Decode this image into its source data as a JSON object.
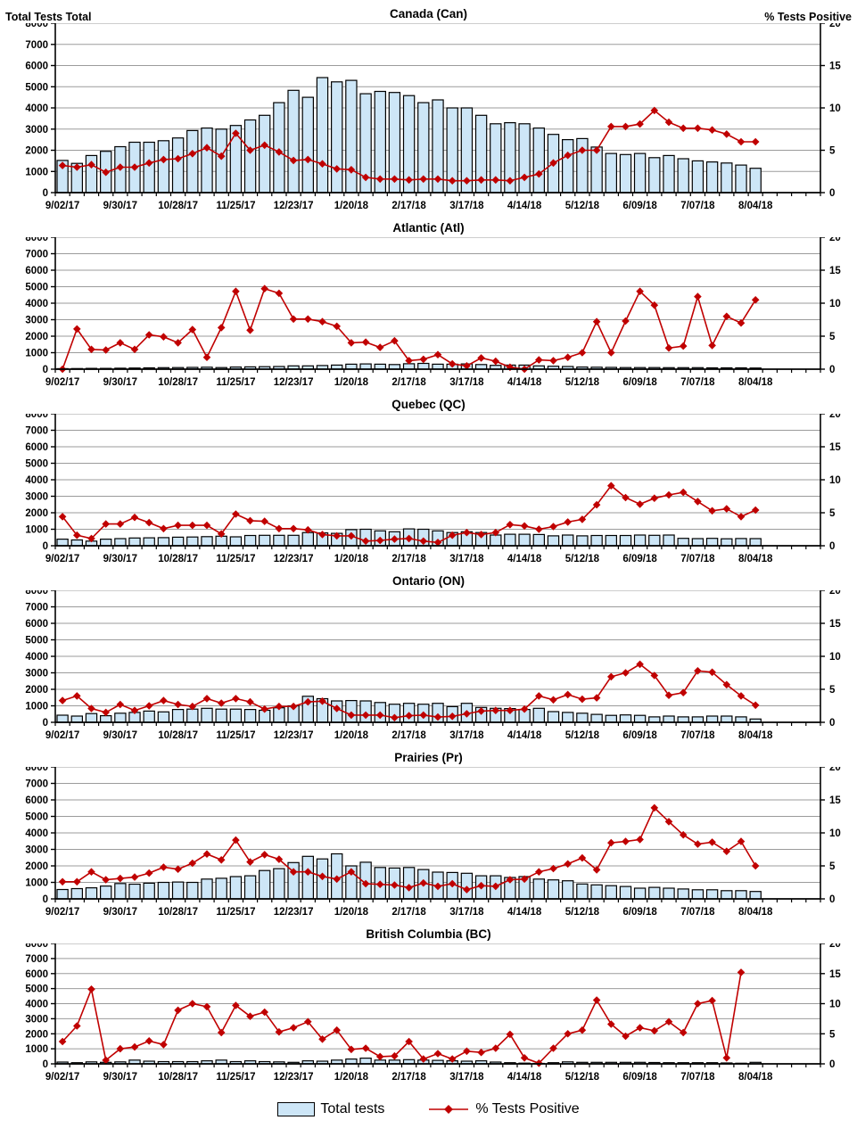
{
  "header": {
    "left_axis_title": "Total Tests Total",
    "right_axis_title": "% Tests Positive"
  },
  "legend": {
    "bars_label": "Total tests",
    "line_label": "% Tests Positive"
  },
  "colors": {
    "bar_fill": "#CDE6F7",
    "bar_stroke": "#000000",
    "line": "#C00000",
    "grid": "#9B9B9B",
    "axis": "#000000",
    "text": "#000000"
  },
  "axes": {
    "left_max": 8000,
    "right_max": 20,
    "left_ticks": [
      0,
      1000,
      2000,
      3000,
      4000,
      5000,
      6000,
      7000,
      8000
    ],
    "right_ticks": [
      0,
      5,
      10,
      15,
      20
    ],
    "x_labels": [
      "9/02/17",
      "9/30/17",
      "10/28/17",
      "11/25/17",
      "12/23/17",
      "1/20/18",
      "2/17/18",
      "3/17/18",
      "4/14/18",
      "5/12/18",
      "6/09/18",
      "7/07/18",
      "8/04/18"
    ],
    "x_label_every": 4,
    "data_slots": 49,
    "total_slots": 53,
    "grid_step_left": 1000
  },
  "chart_data": [
    {
      "type": "combo-bar-line",
      "region": "Canada",
      "title": "Canada (Can)",
      "categories": [
        "9/02/17",
        "9/09/17",
        "9/16/17",
        "9/23/17",
        "9/30/17",
        "10/07/17",
        "10/14/17",
        "10/21/17",
        "10/28/17",
        "11/04/17",
        "11/11/17",
        "11/18/17",
        "11/25/17",
        "12/02/17",
        "12/09/17",
        "12/16/17",
        "12/23/17",
        "12/30/17",
        "1/06/18",
        "1/13/18",
        "1/20/18",
        "1/27/18",
        "2/03/18",
        "2/10/18",
        "2/17/18",
        "2/24/18",
        "3/03/18",
        "3/10/18",
        "3/17/18",
        "3/24/18",
        "3/31/18",
        "4/07/18",
        "4/14/18",
        "4/21/18",
        "4/28/18",
        "5/05/18",
        "5/12/18",
        "5/19/18",
        "5/26/18",
        "6/02/18",
        "6/09/18",
        "6/16/18",
        "6/23/18",
        "6/30/18",
        "7/07/18",
        "7/14/18",
        "7/21/18",
        "7/28/18",
        "8/04/18"
      ],
      "series": [
        {
          "name": "Total tests",
          "axis": "left",
          "values": [
            1520,
            1380,
            1750,
            1950,
            2170,
            2380,
            2380,
            2450,
            2580,
            2930,
            3050,
            3000,
            3170,
            3430,
            3650,
            4250,
            4830,
            4500,
            5430,
            5230,
            5300,
            4670,
            4780,
            4730,
            4580,
            4250,
            4380,
            4000,
            4000,
            3650,
            3250,
            3300,
            3250,
            3050,
            2750,
            2500,
            2550,
            2150,
            1850,
            1800,
            1850,
            1650,
            1750,
            1600,
            1500,
            1450,
            1400,
            1300,
            1150
          ]
        },
        {
          "name": "% Tests Positive",
          "axis": "right",
          "values": [
            3.2,
            3.0,
            3.3,
            2.4,
            3.0,
            3.0,
            3.5,
            3.9,
            4.0,
            4.6,
            5.3,
            4.3,
            7.0,
            5.0,
            5.6,
            4.8,
            3.8,
            3.9,
            3.4,
            2.8,
            2.7,
            1.8,
            1.6,
            1.6,
            1.5,
            1.6,
            1.6,
            1.4,
            1.4,
            1.5,
            1.5,
            1.4,
            1.8,
            2.2,
            3.5,
            4.4,
            5.0,
            5.0,
            7.8,
            7.8,
            8.1,
            9.7,
            8.3,
            7.6,
            7.6,
            7.4,
            6.9,
            6.0,
            6.0
          ]
        }
      ]
    },
    {
      "type": "combo-bar-line",
      "region": "Atlantic",
      "title": "Atlantic (Atl)",
      "categories": [
        "9/02/17",
        "9/09/17",
        "9/16/17",
        "9/23/17",
        "9/30/17",
        "10/07/17",
        "10/14/17",
        "10/21/17",
        "10/28/17",
        "11/04/17",
        "11/11/17",
        "11/18/17",
        "11/25/17",
        "12/02/17",
        "12/09/17",
        "12/16/17",
        "12/23/17",
        "12/30/17",
        "1/06/18",
        "1/13/18",
        "1/20/18",
        "1/27/18",
        "2/03/18",
        "2/10/18",
        "2/17/18",
        "2/24/18",
        "3/03/18",
        "3/10/18",
        "3/17/18",
        "3/24/18",
        "3/31/18",
        "4/07/18",
        "4/14/18",
        "4/21/18",
        "4/28/18",
        "5/05/18",
        "5/12/18",
        "5/19/18",
        "5/26/18",
        "6/02/18",
        "6/09/18",
        "6/16/18",
        "6/23/18",
        "6/30/18",
        "7/07/18",
        "7/14/18",
        "7/21/18",
        "7/28/18",
        "8/04/18"
      ],
      "series": [
        {
          "name": "Total tests",
          "axis": "left",
          "values": [
            30,
            40,
            50,
            50,
            60,
            70,
            80,
            90,
            100,
            110,
            120,
            100,
            130,
            140,
            150,
            160,
            200,
            200,
            220,
            250,
            300,
            320,
            300,
            280,
            330,
            350,
            300,
            300,
            320,
            280,
            230,
            250,
            250,
            200,
            180,
            160,
            130,
            120,
            110,
            100,
            100,
            100,
            90,
            90,
            90,
            80,
            80,
            80,
            70
          ]
        },
        {
          "name": "% Tests Positive",
          "axis": "right",
          "values": [
            0,
            6.1,
            3.0,
            2.9,
            4.0,
            3.0,
            5.2,
            4.9,
            4.0,
            6.0,
            1.8,
            6.3,
            11.8,
            5.9,
            12.2,
            11.5,
            7.6,
            7.6,
            7.2,
            6.5,
            4.0,
            4.1,
            3.3,
            4.3,
            1.3,
            1.5,
            2.2,
            0.8,
            0.5,
            1.7,
            1.2,
            0.3,
            0,
            1.4,
            1.3,
            1.8,
            2.5,
            7.2,
            2.5,
            7.3,
            11.8,
            9.7,
            3.2,
            3.5,
            11.0,
            3.6,
            8.0,
            7.0,
            10.5
          ]
        }
      ]
    },
    {
      "type": "combo-bar-line",
      "region": "Quebec",
      "title": "Quebec (QC)",
      "categories": [
        "9/02/17",
        "9/09/17",
        "9/16/17",
        "9/23/17",
        "9/30/17",
        "10/07/17",
        "10/14/17",
        "10/21/17",
        "10/28/17",
        "11/04/17",
        "11/11/17",
        "11/18/17",
        "11/25/17",
        "12/02/17",
        "12/09/17",
        "12/16/17",
        "12/23/17",
        "12/30/17",
        "1/06/18",
        "1/13/18",
        "1/20/18",
        "1/27/18",
        "2/03/18",
        "2/10/18",
        "2/17/18",
        "2/24/18",
        "3/03/18",
        "3/10/18",
        "3/17/18",
        "3/24/18",
        "3/31/18",
        "4/07/18",
        "4/14/18",
        "4/21/18",
        "4/28/18",
        "5/05/18",
        "5/12/18",
        "5/19/18",
        "5/26/18",
        "6/02/18",
        "6/09/18",
        "6/16/18",
        "6/23/18",
        "6/30/18",
        "7/07/18",
        "7/14/18",
        "7/21/18",
        "7/28/18",
        "8/04/18"
      ],
      "series": [
        {
          "name": "Total tests",
          "axis": "left",
          "values": [
            400,
            350,
            280,
            400,
            430,
            470,
            480,
            490,
            520,
            530,
            550,
            580,
            540,
            620,
            630,
            630,
            630,
            800,
            780,
            750,
            980,
            1000,
            900,
            850,
            1020,
            1000,
            900,
            800,
            850,
            800,
            650,
            700,
            700,
            680,
            600,
            650,
            600,
            620,
            620,
            620,
            650,
            630,
            650,
            450,
            430,
            450,
            420,
            440,
            430
          ]
        },
        {
          "name": "% Tests Positive",
          "axis": "right",
          "values": [
            4.4,
            1.6,
            1.1,
            3.3,
            3.3,
            4.3,
            3.5,
            2.6,
            3.1,
            3.1,
            3.1,
            1.8,
            4.8,
            3.8,
            3.7,
            2.6,
            2.6,
            2.4,
            1.7,
            1.5,
            1.5,
            0.7,
            0.8,
            1.0,
            1.1,
            0.7,
            0.5,
            1.6,
            2.0,
            1.7,
            2.0,
            3.2,
            3.0,
            2.5,
            2.9,
            3.6,
            4.0,
            6.2,
            9.1,
            7.3,
            6.3,
            7.2,
            7.7,
            8.1,
            6.7,
            5.3,
            5.6,
            4.4,
            5.4
          ]
        }
      ]
    },
    {
      "type": "combo-bar-line",
      "region": "Ontario",
      "title": "Ontario (ON)",
      "categories": [
        "9/02/17",
        "9/09/17",
        "9/16/17",
        "9/23/17",
        "9/30/17",
        "10/07/17",
        "10/14/17",
        "10/21/17",
        "10/28/17",
        "11/04/17",
        "11/11/17",
        "11/18/17",
        "11/25/17",
        "12/02/17",
        "12/09/17",
        "12/16/17",
        "12/23/17",
        "12/30/17",
        "1/06/18",
        "1/13/18",
        "1/20/18",
        "1/27/18",
        "2/03/18",
        "2/10/18",
        "2/17/18",
        "2/24/18",
        "3/03/18",
        "3/10/18",
        "3/17/18",
        "3/24/18",
        "3/31/18",
        "4/07/18",
        "4/14/18",
        "4/21/18",
        "4/28/18",
        "5/05/18",
        "5/12/18",
        "5/19/18",
        "5/26/18",
        "6/02/18",
        "6/09/18",
        "6/16/18",
        "6/23/18",
        "6/30/18",
        "7/07/18",
        "7/14/18",
        "7/21/18",
        "7/28/18",
        "8/04/18"
      ],
      "series": [
        {
          "name": "Total tests",
          "axis": "left",
          "values": [
            430,
            380,
            530,
            400,
            550,
            600,
            680,
            630,
            780,
            800,
            850,
            800,
            800,
            780,
            730,
            880,
            1000,
            1580,
            1430,
            1300,
            1320,
            1300,
            1200,
            1100,
            1150,
            1100,
            1150,
            950,
            1150,
            900,
            850,
            830,
            780,
            850,
            650,
            600,
            550,
            480,
            420,
            450,
            420,
            330,
            380,
            330,
            330,
            380,
            380,
            330,
            200
          ]
        },
        {
          "name": "% Tests Positive",
          "axis": "right",
          "values": [
            3.3,
            4.0,
            2.1,
            1.5,
            2.7,
            1.8,
            2.5,
            3.3,
            2.7,
            2.4,
            3.6,
            2.9,
            3.6,
            3.1,
            2.0,
            2.4,
            2.4,
            3.1,
            3.2,
            2.1,
            1.1,
            1.1,
            1.1,
            0.7,
            1.0,
            1.1,
            0.8,
            0.9,
            1.3,
            1.7,
            1.8,
            1.8,
            2.0,
            4.0,
            3.4,
            4.2,
            3.5,
            3.7,
            6.9,
            7.5,
            8.8,
            7.1,
            4.1,
            4.5,
            7.8,
            7.6,
            5.7,
            4.0,
            2.6
          ]
        }
      ]
    },
    {
      "type": "combo-bar-line",
      "region": "Prairies",
      "title": "Prairies (Pr)",
      "categories": [
        "9/02/17",
        "9/09/17",
        "9/16/17",
        "9/23/17",
        "9/30/17",
        "10/07/17",
        "10/14/17",
        "10/21/17",
        "10/28/17",
        "11/04/17",
        "11/11/17",
        "11/18/17",
        "11/25/17",
        "12/02/17",
        "12/09/17",
        "12/16/17",
        "12/23/17",
        "12/30/17",
        "1/06/18",
        "1/13/18",
        "1/20/18",
        "1/27/18",
        "2/03/18",
        "2/10/18",
        "2/17/18",
        "2/24/18",
        "3/03/18",
        "3/10/18",
        "3/17/18",
        "3/24/18",
        "3/31/18",
        "4/07/18",
        "4/14/18",
        "4/21/18",
        "4/28/18",
        "5/05/18",
        "5/12/18",
        "5/19/18",
        "5/26/18",
        "6/02/18",
        "6/09/18",
        "6/16/18",
        "6/23/18",
        "6/30/18",
        "7/07/18",
        "7/14/18",
        "7/21/18",
        "7/28/18",
        "8/04/18"
      ],
      "series": [
        {
          "name": "Total tests",
          "axis": "left",
          "values": [
            570,
            620,
            670,
            780,
            930,
            890,
            950,
            1000,
            1020,
            1000,
            1200,
            1250,
            1350,
            1400,
            1720,
            1830,
            2200,
            2580,
            2420,
            2730,
            2000,
            2220,
            1900,
            1870,
            1900,
            1780,
            1620,
            1600,
            1550,
            1400,
            1400,
            1300,
            1350,
            1200,
            1150,
            1100,
            900,
            850,
            800,
            750,
            650,
            700,
            650,
            600,
            550,
            550,
            500,
            500,
            450
          ]
        },
        {
          "name": "% Tests Positive",
          "axis": "right",
          "values": [
            2.6,
            2.6,
            4.1,
            2.9,
            3.1,
            3.3,
            3.9,
            4.8,
            4.5,
            5.4,
            6.8,
            5.9,
            8.9,
            5.6,
            6.7,
            6.0,
            4.1,
            4.1,
            3.4,
            3.0,
            4.1,
            2.3,
            2.2,
            2.1,
            1.7,
            2.4,
            1.9,
            2.3,
            1.4,
            2.0,
            1.9,
            2.9,
            3.0,
            4.1,
            4.6,
            5.3,
            6.2,
            4.4,
            8.5,
            8.7,
            9.0,
            13.8,
            11.7,
            9.7,
            8.3,
            8.6,
            7.2,
            8.7,
            5.0
          ]
        }
      ]
    },
    {
      "type": "combo-bar-line",
      "region": "British Columbia",
      "title": "British Columbia (BC)",
      "categories": [
        "9/02/17",
        "9/09/17",
        "9/16/17",
        "9/23/17",
        "9/30/17",
        "10/07/17",
        "10/14/17",
        "10/21/17",
        "10/28/17",
        "11/04/17",
        "11/11/17",
        "11/18/17",
        "11/25/17",
        "12/02/17",
        "12/09/17",
        "12/16/17",
        "12/23/17",
        "12/30/17",
        "1/06/18",
        "1/13/18",
        "1/20/18",
        "1/27/18",
        "2/03/18",
        "2/10/18",
        "2/17/18",
        "2/24/18",
        "3/03/18",
        "3/10/18",
        "3/17/18",
        "3/24/18",
        "3/31/18",
        "4/07/18",
        "4/14/18",
        "4/21/18",
        "4/28/18",
        "5/05/18",
        "5/12/18",
        "5/19/18",
        "5/26/18",
        "6/02/18",
        "6/09/18",
        "6/16/18",
        "6/23/18",
        "6/30/18",
        "7/07/18",
        "7/14/18",
        "7/21/18",
        "7/28/18",
        "8/04/18"
      ],
      "series": [
        {
          "name": "Total tests",
          "axis": "left",
          "values": [
            120,
            80,
            130,
            100,
            130,
            250,
            180,
            150,
            150,
            150,
            200,
            250,
            150,
            200,
            150,
            130,
            100,
            200,
            180,
            250,
            320,
            380,
            250,
            250,
            280,
            250,
            230,
            200,
            180,
            200,
            120,
            80,
            50,
            30,
            80,
            130,
            100,
            100,
            100,
            100,
            100,
            90,
            80,
            80,
            80,
            80,
            60,
            40,
            100
          ]
        },
        {
          "name": "% Tests Positive",
          "axis": "right",
          "values": [
            3.7,
            6.3,
            12.4,
            0.6,
            2.5,
            2.8,
            3.8,
            3.2,
            8.9,
            10.0,
            9.5,
            5.2,
            9.7,
            7.9,
            8.6,
            5.3,
            6.0,
            7.0,
            4.1,
            5.6,
            2.4,
            2.6,
            1.2,
            1.3,
            3.7,
            0.8,
            1.7,
            0.8,
            2.1,
            1.9,
            2.6,
            4.9,
            1.0,
            0.1,
            2.6,
            5.0,
            5.6,
            10.6,
            6.6,
            4.6,
            6.0,
            5.5,
            7.0,
            5.2,
            10.0,
            10.5,
            1.0,
            15.2,
            null
          ]
        }
      ]
    }
  ]
}
